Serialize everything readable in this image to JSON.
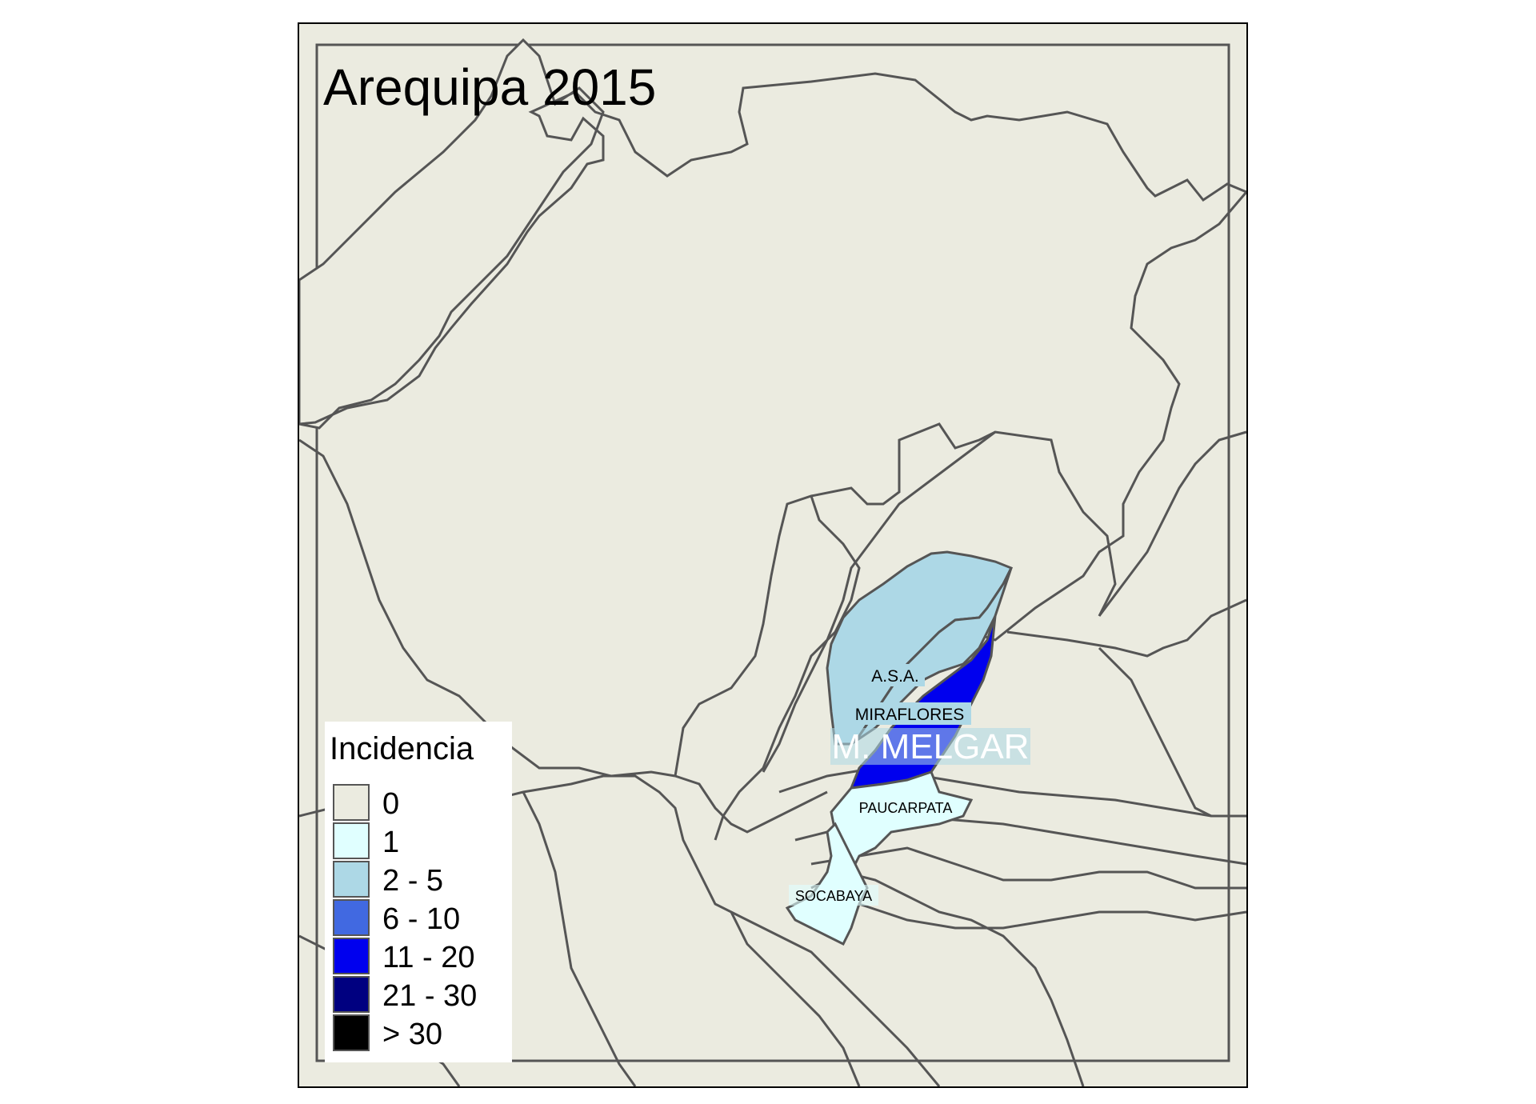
{
  "map": {
    "title": "Arequipa 2015",
    "district_labels": {
      "asa": "A.S.A.",
      "miraflores": "MIRAFLORES",
      "melgar": "M. MELGAR",
      "paucarpata": "PAUCARPATA",
      "socabaya": "SOCABAYA"
    }
  },
  "legend": {
    "title": "Incidencia",
    "classes": [
      {
        "label": "0",
        "color": "#ebebe0"
      },
      {
        "label": "1",
        "color": "#e0ffff"
      },
      {
        "label": "2 - 5",
        "color": "#add8e6"
      },
      {
        "label": "6 - 10",
        "color": "#4169e1"
      },
      {
        "label": "11 - 20",
        "color": "#0000ee"
      },
      {
        "label": "21 - 30",
        "color": "#000080"
      },
      {
        "label": "> 30",
        "color": "#000000"
      }
    ]
  },
  "colors": {
    "background": "#ebebe0",
    "border": "#555555",
    "melgar_label": "#ffffff"
  }
}
